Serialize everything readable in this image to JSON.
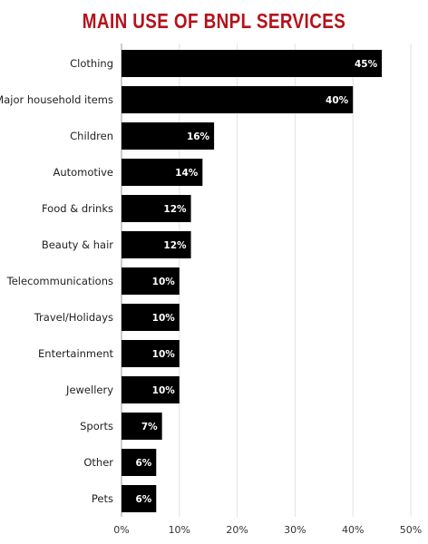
{
  "chart_data": {
    "type": "bar",
    "orientation": "horizontal",
    "title": "MAIN USE OF BNPL SERVICES",
    "categories": [
      "Clothing",
      "Major household items",
      "Children",
      "Automotive",
      "Food & drinks",
      "Beauty & hair",
      "Telecommunications",
      "Travel/Holidays",
      "Entertainment",
      "Jewellery",
      "Sports",
      "Other",
      "Pets"
    ],
    "values": [
      45,
      40,
      16,
      14,
      12,
      12,
      10,
      10,
      10,
      10,
      7,
      6,
      6
    ],
    "data_labels": [
      "45%",
      "40%",
      "16%",
      "14%",
      "12%",
      "12%",
      "10%",
      "10%",
      "10%",
      "10%",
      "7%",
      "6%",
      "6%"
    ],
    "xlim": [
      0,
      50
    ],
    "x_ticks": [
      "0%",
      "10%",
      "20%",
      "30%",
      "40%",
      "50%"
    ],
    "grid": "vertical",
    "bar_color": "#000000",
    "title_color": "#b5121b"
  }
}
